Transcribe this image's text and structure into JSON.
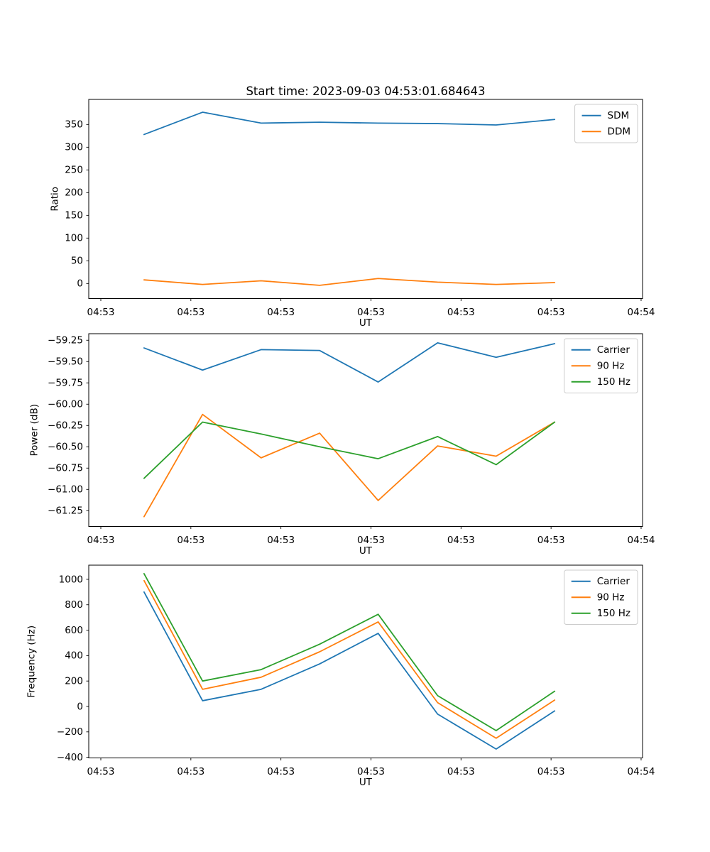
{
  "figure": {
    "title": "Start time: 2023-09-03 04:53:01.684643",
    "background": "#ffffff"
  },
  "axis_x": {
    "label": "UT",
    "xlim_seconds": [
      -1.34,
      60.16
    ],
    "tick_seconds": [
      0,
      10,
      20,
      30,
      40,
      50,
      60
    ],
    "tick_labels": [
      "04:53",
      "04:53",
      "04:53",
      "04:53",
      "04:53",
      "04:53",
      "04:54"
    ]
  },
  "chart_data": [
    {
      "id": "ratio",
      "type": "line",
      "title": "",
      "xlabel": "UT",
      "ylabel": "Ratio",
      "grid": false,
      "legend_position": "upper right",
      "x_seconds": [
        4.8,
        11.3,
        17.8,
        24.3,
        30.8,
        37.4,
        43.9,
        50.4
      ],
      "ylim": [
        -33.1,
        405.2
      ],
      "yticks": [
        0,
        50,
        100,
        150,
        200,
        250,
        300,
        350
      ],
      "ytick_labels": [
        "0",
        "50",
        "100",
        "150",
        "200",
        "250",
        "300",
        "350"
      ],
      "series": [
        {
          "name": "SDM",
          "color": "#1f77b4",
          "values": [
            328,
            377,
            353,
            355,
            353,
            352,
            349,
            361
          ]
        },
        {
          "name": "DDM",
          "color": "#ff7f0e",
          "values": [
            8,
            -2,
            6,
            -4,
            11,
            3,
            -2,
            2
          ]
        }
      ]
    },
    {
      "id": "power",
      "type": "line",
      "title": "",
      "xlabel": "UT",
      "ylabel": "Power (dB)",
      "grid": false,
      "legend_position": "upper right",
      "x_seconds": [
        4.8,
        11.3,
        17.8,
        24.3,
        30.8,
        37.4,
        43.9,
        50.4
      ],
      "ylim": [
        -61.435,
        -59.173
      ],
      "yticks": [
        -61.25,
        -61.0,
        -60.75,
        -60.5,
        -60.25,
        -60.0,
        -59.75,
        -59.5,
        -59.25
      ],
      "ytick_labels": [
        "−61.25",
        "−61.00",
        "−60.75",
        "−60.50",
        "−60.25",
        "−60.00",
        "−59.75",
        "−59.50",
        "−59.25"
      ],
      "series": [
        {
          "name": "Carrier",
          "color": "#1f77b4",
          "values": [
            -59.34,
            -59.6,
            -59.36,
            -59.37,
            -59.74,
            -59.28,
            -59.45,
            -59.29
          ]
        },
        {
          "name": "90 Hz",
          "color": "#ff7f0e",
          "values": [
            -61.32,
            -60.12,
            -60.63,
            -60.34,
            -61.13,
            -60.49,
            -60.61,
            -60.21
          ]
        },
        {
          "name": "150 Hz",
          "color": "#2ca02c",
          "values": [
            -60.87,
            -60.21,
            -60.35,
            -60.5,
            -60.64,
            -60.38,
            -60.71,
            -60.21
          ]
        }
      ]
    },
    {
      "id": "frequency",
      "type": "line",
      "title": "",
      "xlabel": "UT",
      "ylabel": "Frequency (Hz)",
      "grid": false,
      "legend_position": "upper right",
      "x_seconds": [
        4.8,
        11.3,
        17.8,
        24.3,
        30.8,
        37.4,
        43.9,
        50.4
      ],
      "ylim": [
        -404.9,
        1111.4
      ],
      "yticks": [
        -400,
        -200,
        0,
        200,
        400,
        600,
        800,
        1000
      ],
      "ytick_labels": [
        "−400",
        "−200",
        "0",
        "200",
        "400",
        "600",
        "800",
        "1000"
      ],
      "series": [
        {
          "name": "Carrier",
          "color": "#1f77b4",
          "values": [
            900,
            45,
            135,
            335,
            575,
            -60,
            -335,
            -35
          ]
        },
        {
          "name": "90 Hz",
          "color": "#ff7f0e",
          "values": [
            990,
            135,
            230,
            430,
            665,
            30,
            -250,
            50
          ]
        },
        {
          "name": "150 Hz",
          "color": "#2ca02c",
          "values": [
            1045,
            200,
            290,
            490,
            725,
            85,
            -190,
            120
          ]
        }
      ]
    }
  ]
}
